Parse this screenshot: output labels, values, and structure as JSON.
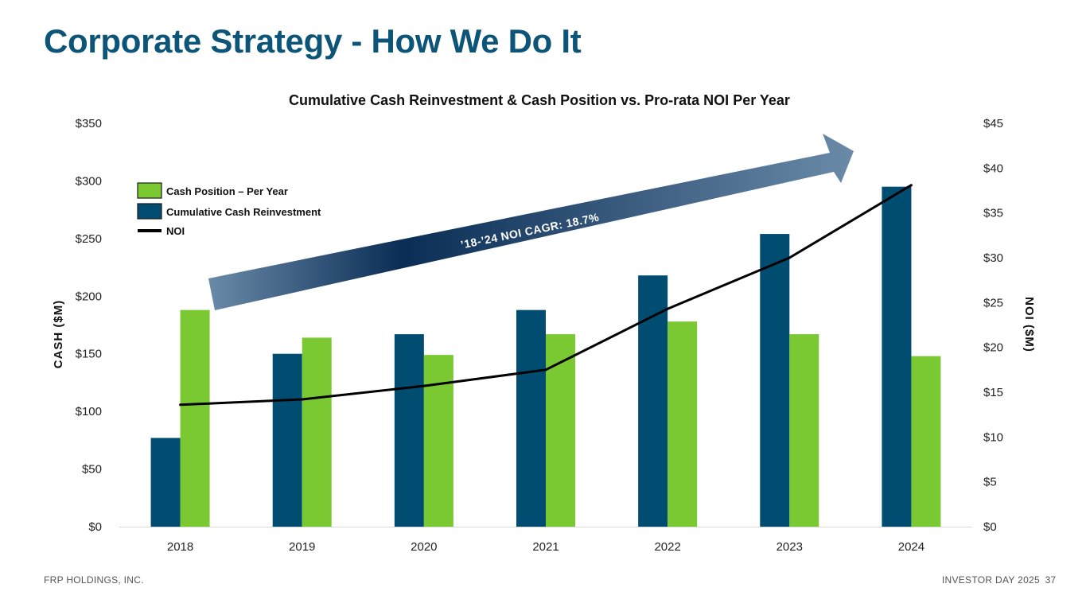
{
  "slide": {
    "title": "Corporate Strategy - How We Do It",
    "footer_left": "FRP HOLDINGS, INC.",
    "footer_right": "INVESTOR DAY 2025",
    "page_number": "37"
  },
  "colors": {
    "title": "#0d5479",
    "cumulative": "#004d71",
    "cash": "#7ac832",
    "noi": "#000000",
    "arrow_dark": "#0a2d55",
    "arrow_light": "#6a8aa8"
  },
  "chart_data": {
    "type": "bar",
    "title": "Cumulative Cash Reinvestment & Cash Position vs. Pro-rata NOI Per Year",
    "categories": [
      "2018",
      "2019",
      "2020",
      "2021",
      "2022",
      "2023",
      "2024"
    ],
    "series": [
      {
        "name": "Cumulative Cash Reinvestment",
        "type": "bar",
        "axis": "left",
        "values": [
          77,
          150,
          167,
          188,
          218,
          254,
          295
        ]
      },
      {
        "name": "Cash Position – Per Year",
        "type": "bar",
        "axis": "left",
        "values": [
          188,
          164,
          149,
          167,
          178,
          167,
          148
        ]
      },
      {
        "name": "NOI",
        "type": "line",
        "axis": "right",
        "values": [
          13.6,
          14.2,
          15.7,
          17.5,
          24.3,
          30.0,
          38.1
        ]
      }
    ],
    "ylabel_left": "CASH ($M)",
    "ylabel_right": "NOI ($M)",
    "ylim_left": [
      0,
      350
    ],
    "ylim_right": [
      0,
      45
    ],
    "yticks_left": [
      "$0",
      "$50",
      "$100",
      "$150",
      "$200",
      "$250",
      "$300",
      "$350"
    ],
    "yticks_right": [
      "$0",
      "$5",
      "$10",
      "$15",
      "$20",
      "$25",
      "$30",
      "$35",
      "$40",
      "$45"
    ],
    "legend": [
      {
        "label": "Cash Position – Per Year",
        "kind": "box",
        "series": "cash"
      },
      {
        "label": "Cumulative Cash Reinvestment",
        "kind": "box",
        "series": "cumulative"
      },
      {
        "label": "NOI",
        "kind": "line",
        "series": "noi"
      }
    ],
    "legend_position": "top-left",
    "annotation": "’18-’24 NOI CAGR: 18.7%",
    "grid": false
  }
}
